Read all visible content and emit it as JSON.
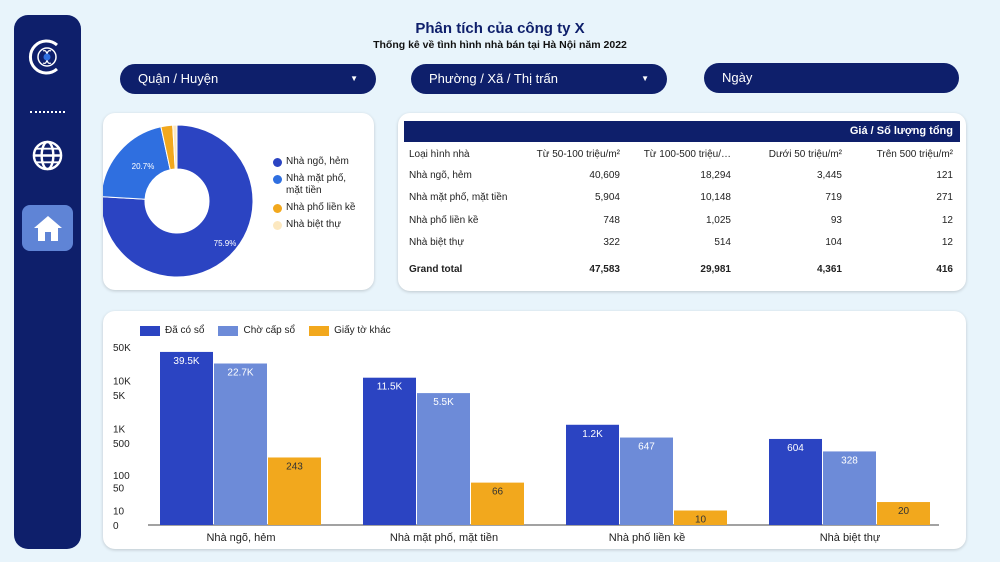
{
  "header": {
    "title": "Phân tích của công ty X",
    "subtitle": "Thống kê về tình hình nhà bán tại Hà Nội năm 2022"
  },
  "sidebar": {
    "icons": [
      "logo-icon",
      "globe-icon",
      "home-icon"
    ]
  },
  "filters": {
    "district": "Quận / Huyện",
    "ward": "Phường / Xã / Thị trấn",
    "date": "Ngày"
  },
  "colors": {
    "navy": "#0e1f6b",
    "blue_dark": "#2b44c2",
    "blue_mid": "#2f6fe0",
    "blue_light": "#6d8bd8",
    "orange": "#f2a81d",
    "cream": "#fce8c0"
  },
  "pie": {
    "legend": [
      {
        "label": "Nhà ngõ, hẻm",
        "color": "#2b44c2"
      },
      {
        "label": "Nhà mặt phố, mặt tiền",
        "color": "#2f6fe0"
      },
      {
        "label": "Nhà phố liền kề",
        "color": "#f2a81d"
      },
      {
        "label": "Nhà biệt thự",
        "color": "#fce8c0"
      }
    ],
    "label_large": "75.9%",
    "label_small": "20.7%"
  },
  "table": {
    "title": "Giá / Số lượng tổng",
    "columns": [
      "Loại hình nhà",
      "Từ 50-100 triệu/m²",
      "Từ 100-500 triệu/…",
      "Dưới 50 triệu/m²",
      "Trên 500 triệu/m²"
    ],
    "rows": [
      [
        "Nhà ngõ, hẻm",
        "40,609",
        "18,294",
        "3,445",
        "121"
      ],
      [
        "Nhà mặt phố, mặt tiền",
        "5,904",
        "10,148",
        "719",
        "271"
      ],
      [
        "Nhà phố liền kề",
        "748",
        "1,025",
        "93",
        "12"
      ],
      [
        "Nhà biệt thự",
        "322",
        "514",
        "104",
        "12"
      ]
    ],
    "total": [
      "Grand total",
      "47,583",
      "29,981",
      "4,361",
      "416"
    ]
  },
  "chart_data": [
    {
      "type": "pie",
      "categories": [
        "Nhà ngõ, hẻm",
        "Nhà mặt phố, mặt tiền",
        "Nhà phố liền kề",
        "Nhà biệt thự"
      ],
      "values": [
        75.9,
        20.7,
        2.5,
        0.9
      ],
      "unit": "%",
      "donut": true,
      "legend": "right"
    },
    {
      "type": "bar",
      "categories": [
        "Nhà ngõ, hẻm",
        "Nhà mặt phố, mặt tiền",
        "Nhà phố liền kề",
        "Nhà biệt thự"
      ],
      "series": [
        {
          "name": "Đã có sổ",
          "values": [
            39500,
            11500,
            1200,
            604
          ],
          "labels": [
            "39.5K",
            "11.5K",
            "1.2K",
            "604"
          ],
          "color": "#2b44c2"
        },
        {
          "name": "Chờ cấp sổ",
          "values": [
            22700,
            5500,
            647,
            328
          ],
          "labels": [
            "22.7K",
            "5.5K",
            "647",
            "328"
          ],
          "color": "#6d8bd8"
        },
        {
          "name": "Giấy tờ khác",
          "values": [
            243,
            66,
            10,
            20
          ],
          "labels": [
            "243",
            "66",
            "10",
            "20"
          ],
          "color": "#f2a81d"
        }
      ],
      "y_scale": "symlog",
      "y_ticks": [
        0,
        10,
        50,
        100,
        500,
        1000,
        5000,
        10000,
        50000
      ],
      "y_tick_labels": [
        "0",
        "10",
        "50",
        "100",
        "500",
        "1K",
        "5K",
        "10K",
        "50K"
      ],
      "legend": "top-left",
      "grid": false
    }
  ]
}
